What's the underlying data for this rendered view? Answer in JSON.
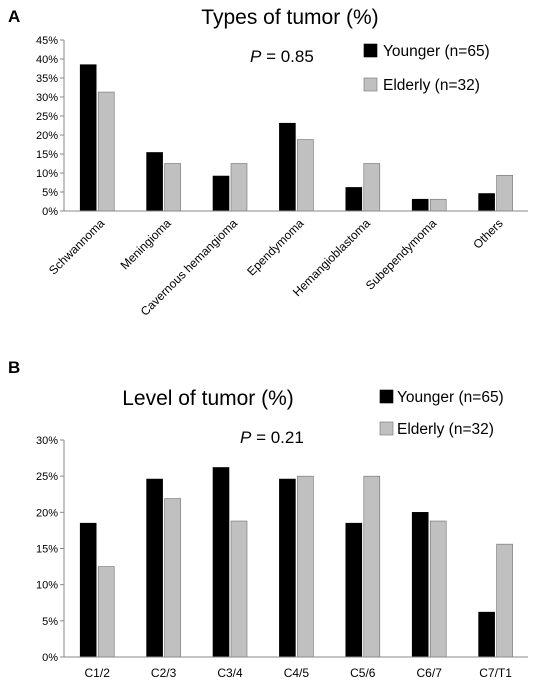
{
  "chart_data": [
    {
      "panel": "A",
      "type": "bar",
      "title": "Types of tumor (%)",
      "annotation": "P = 0.85",
      "annotation_italic": "P",
      "annotation_rest": " = 0.85",
      "categories": [
        "Schwannoma",
        "Meningioma",
        "Cavernous hemangioma",
        "Ependymoma",
        "Hemangioblastoma",
        "Subependymoma",
        "Others"
      ],
      "series": [
        {
          "name": "Younger (n=65)",
          "color": "#000000",
          "values": [
            38.5,
            15.4,
            9.2,
            23.1,
            6.2,
            3.1,
            4.6
          ]
        },
        {
          "name": "Elderly (n=32)",
          "color": "#c0c0c0",
          "values": [
            31.3,
            12.5,
            12.5,
            18.8,
            12.5,
            3.1,
            9.4
          ]
        }
      ],
      "yticks": [
        "0%",
        "5%",
        "10%",
        "15%",
        "20%",
        "25%",
        "30%",
        "35%",
        "40%",
        "45%"
      ],
      "ylim": [
        0,
        45
      ],
      "legend_position": "top-right",
      "grid": false
    },
    {
      "panel": "B",
      "type": "bar",
      "title": "Level of tumor (%)",
      "annotation": "P = 0.21",
      "annotation_italic": "P",
      "annotation_rest": " = 0.21",
      "categories": [
        "C1/2",
        "C2/3",
        "C3/4",
        "C4/5",
        "C5/6",
        "C6/7",
        "C7/T1"
      ],
      "series": [
        {
          "name": "Younger (n=65)",
          "color": "#000000",
          "values": [
            18.5,
            24.6,
            26.2,
            24.6,
            18.5,
            20.0,
            6.2
          ]
        },
        {
          "name": "Elderly (n=32)",
          "color": "#c0c0c0",
          "values": [
            12.5,
            21.9,
            18.8,
            25.0,
            25.0,
            18.8,
            15.6
          ]
        }
      ],
      "yticks": [
        "0%",
        "5%",
        "10%",
        "15%",
        "20%",
        "25%",
        "30%"
      ],
      "ylim": [
        0,
        30
      ],
      "legend_position": "top-right",
      "grid": false
    }
  ]
}
